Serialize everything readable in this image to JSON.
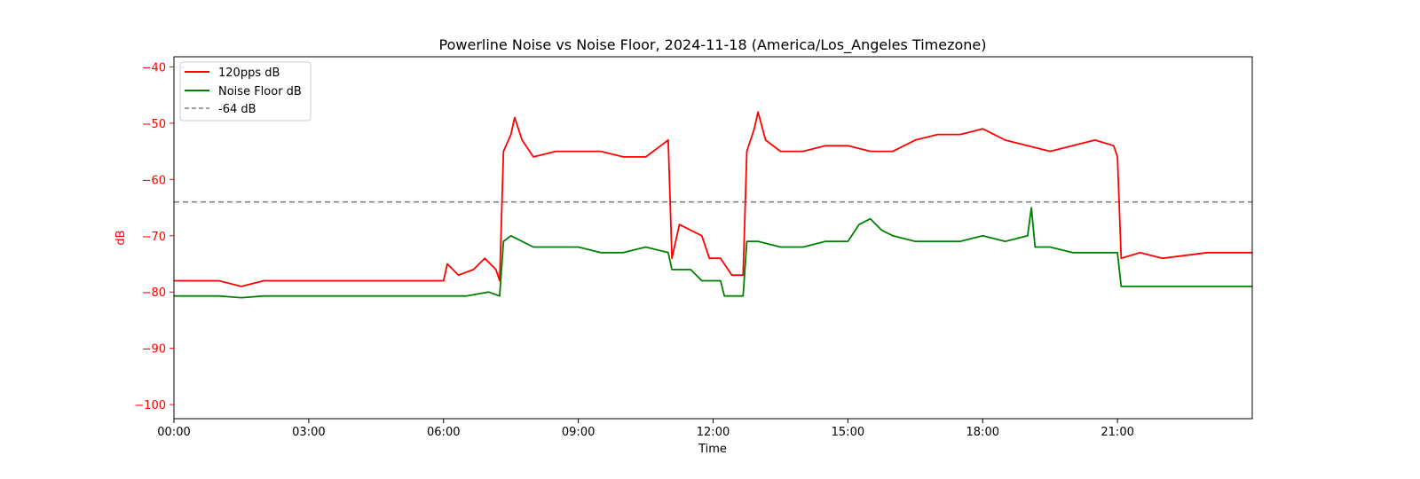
{
  "chart_data": {
    "type": "line",
    "title": "Powerline Noise vs Noise Floor, 2024-11-18 (America/Los_Angeles Timezone)",
    "xlabel": "Time",
    "ylabel": "dB",
    "xlim": [
      "00:00",
      "24:00"
    ],
    "ylim": [
      -102.5,
      -38.2
    ],
    "x_ticks": [
      "00:00",
      "03:00",
      "06:00",
      "09:00",
      "12:00",
      "15:00",
      "18:00",
      "21:00"
    ],
    "y_ticks": [
      -40,
      -50,
      -60,
      -70,
      -80,
      -90,
      -100
    ],
    "grid": false,
    "legend_position": "top-left",
    "colors": {
      "y_axis": "#ff0000",
      "series_120pps": "#ff0000",
      "series_noise_floor": "#008000",
      "reference": "#808080"
    },
    "reference_line": {
      "name": "-64 dB",
      "y": -64,
      "style": "dashed"
    },
    "series": [
      {
        "name": "120pps dB",
        "color": "#ff0000",
        "points": [
          [
            "00:00",
            -78
          ],
          [
            "01:00",
            -78
          ],
          [
            "01:30",
            -79
          ],
          [
            "02:00",
            -78
          ],
          [
            "03:00",
            -78
          ],
          [
            "04:00",
            -78
          ],
          [
            "05:00",
            -78
          ],
          [
            "05:30",
            -78
          ],
          [
            "06:00",
            -78
          ],
          [
            "06:05",
            -75
          ],
          [
            "06:20",
            -77
          ],
          [
            "06:40",
            -76
          ],
          [
            "06:55",
            -74
          ],
          [
            "07:10",
            -76
          ],
          [
            "07:15",
            -78
          ],
          [
            "07:20",
            -55
          ],
          [
            "07:30",
            -52
          ],
          [
            "07:35",
            -49
          ],
          [
            "07:45",
            -53
          ],
          [
            "08:00",
            -56
          ],
          [
            "08:30",
            -55
          ],
          [
            "09:00",
            -55
          ],
          [
            "09:30",
            -55
          ],
          [
            "10:00",
            -56
          ],
          [
            "10:30",
            -56
          ],
          [
            "10:50",
            -54
          ],
          [
            "11:00",
            -53
          ],
          [
            "11:05",
            -74
          ],
          [
            "11:15",
            -68
          ],
          [
            "11:30",
            -69
          ],
          [
            "11:45",
            -70
          ],
          [
            "11:55",
            -74
          ],
          [
            "12:10",
            -74
          ],
          [
            "12:25",
            -77
          ],
          [
            "12:40",
            -77
          ],
          [
            "12:45",
            -55
          ],
          [
            "12:55",
            -51
          ],
          [
            "13:00",
            -48
          ],
          [
            "13:10",
            -53
          ],
          [
            "13:30",
            -55
          ],
          [
            "14:00",
            -55
          ],
          [
            "14:30",
            -54
          ],
          [
            "15:00",
            -54
          ],
          [
            "15:30",
            -55
          ],
          [
            "16:00",
            -55
          ],
          [
            "16:30",
            -53
          ],
          [
            "17:00",
            -52
          ],
          [
            "17:30",
            -52
          ],
          [
            "18:00",
            -51
          ],
          [
            "18:30",
            -53
          ],
          [
            "19:00",
            -54
          ],
          [
            "19:30",
            -55
          ],
          [
            "20:00",
            -54
          ],
          [
            "20:30",
            -53
          ],
          [
            "20:55",
            -54
          ],
          [
            "21:00",
            -56
          ],
          [
            "21:05",
            -74
          ],
          [
            "21:30",
            -73
          ],
          [
            "22:00",
            -74
          ],
          [
            "23:00",
            -73
          ],
          [
            "24:00",
            -73
          ]
        ]
      },
      {
        "name": "Noise Floor dB",
        "color": "#008000",
        "points": [
          [
            "00:00",
            -80.7
          ],
          [
            "01:00",
            -80.7
          ],
          [
            "01:30",
            -81
          ],
          [
            "02:00",
            -80.7
          ],
          [
            "03:00",
            -80.7
          ],
          [
            "04:00",
            -80.7
          ],
          [
            "05:00",
            -80.7
          ],
          [
            "06:00",
            -80.7
          ],
          [
            "06:30",
            -80.7
          ],
          [
            "07:00",
            -80
          ],
          [
            "07:15",
            -80.7
          ],
          [
            "07:20",
            -71
          ],
          [
            "07:30",
            -70
          ],
          [
            "08:00",
            -72
          ],
          [
            "08:30",
            -72
          ],
          [
            "09:00",
            -72
          ],
          [
            "09:30",
            -73
          ],
          [
            "10:00",
            -73
          ],
          [
            "10:30",
            -72
          ],
          [
            "11:00",
            -73
          ],
          [
            "11:05",
            -76
          ],
          [
            "11:30",
            -76
          ],
          [
            "11:45",
            -78
          ],
          [
            "12:10",
            -78
          ],
          [
            "12:15",
            -80.7
          ],
          [
            "12:40",
            -80.7
          ],
          [
            "12:45",
            -71
          ],
          [
            "13:00",
            -71
          ],
          [
            "13:30",
            -72
          ],
          [
            "14:00",
            -72
          ],
          [
            "14:30",
            -71
          ],
          [
            "15:00",
            -71
          ],
          [
            "15:15",
            -68
          ],
          [
            "15:30",
            -67
          ],
          [
            "15:45",
            -69
          ],
          [
            "16:00",
            -70
          ],
          [
            "16:30",
            -71
          ],
          [
            "17:00",
            -71
          ],
          [
            "17:30",
            -71
          ],
          [
            "18:00",
            -70
          ],
          [
            "18:30",
            -71
          ],
          [
            "19:00",
            -70
          ],
          [
            "19:05",
            -65
          ],
          [
            "19:10",
            -72
          ],
          [
            "19:30",
            -72
          ],
          [
            "20:00",
            -73
          ],
          [
            "20:30",
            -73
          ],
          [
            "21:00",
            -73
          ],
          [
            "21:05",
            -79
          ],
          [
            "21:30",
            -79
          ],
          [
            "22:00",
            -79
          ],
          [
            "23:00",
            -79
          ],
          [
            "24:00",
            -79
          ]
        ]
      }
    ]
  }
}
